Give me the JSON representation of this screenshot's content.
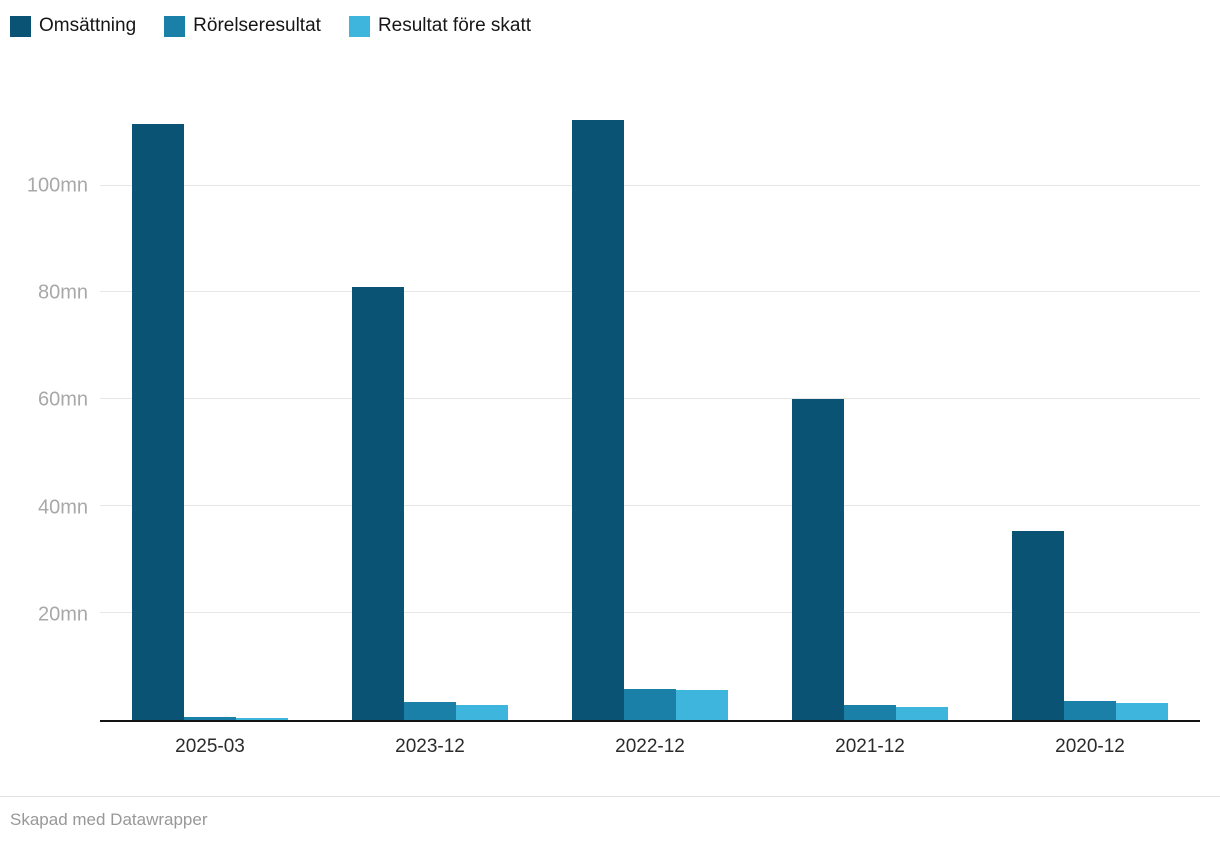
{
  "legend": [
    {
      "label": "Omsättning",
      "color": "#0b5374"
    },
    {
      "label": "Rörelseresultat",
      "color": "#1a80a7"
    },
    {
      "label": "Resultat före skatt",
      "color": "#3db5dd"
    }
  ],
  "footer": {
    "credit": "Skapad med Datawrapper"
  },
  "chart_data": {
    "type": "bar",
    "title": "",
    "categories": [
      "2025-03",
      "2023-12",
      "2022-12",
      "2021-12",
      "2020-12"
    ],
    "series": [
      {
        "name": "Omsättning",
        "color": "#0b5374",
        "values": [
          111.5,
          81,
          112.3,
          60,
          35.3
        ]
      },
      {
        "name": "Rörelseresultat",
        "color": "#1a80a7",
        "values": [
          0.6,
          3.3,
          5.8,
          2.9,
          3.6
        ]
      },
      {
        "name": "Resultat före skatt",
        "color": "#3db5dd",
        "values": [
          0.3,
          2.9,
          5.7,
          2.5,
          3.2
        ]
      }
    ],
    "xlabel": "",
    "ylabel": "",
    "yticks": [
      20,
      40,
      60,
      80,
      100
    ],
    "ytick_suffix": "mn",
    "ylim": [
      0,
      116
    ],
    "grid": true,
    "legend_position": "top-left"
  }
}
